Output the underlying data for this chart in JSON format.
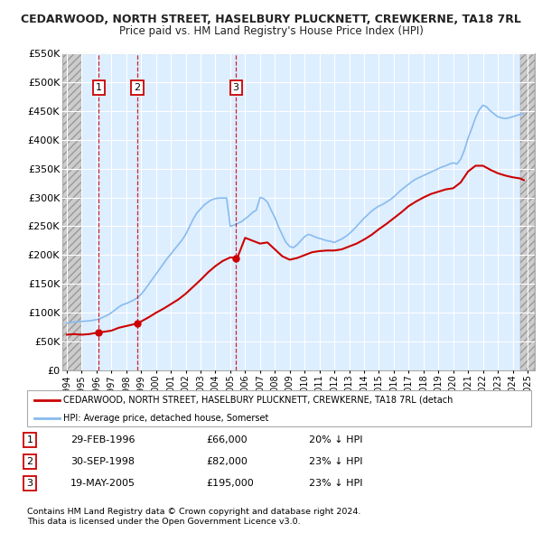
{
  "title": "CEDARWOOD, NORTH STREET, HASELBURY PLUCKNETT, CREWKERNE, TA18 7RL",
  "subtitle": "Price paid vs. HM Land Registry's House Price Index (HPI)",
  "ylim": [
    0,
    550000
  ],
  "xlim_start": 1993.7,
  "xlim_end": 2025.5,
  "yticks": [
    0,
    50000,
    100000,
    150000,
    200000,
    250000,
    300000,
    350000,
    400000,
    450000,
    500000,
    550000
  ],
  "ytick_labels": [
    "£0",
    "£50K",
    "£100K",
    "£150K",
    "£200K",
    "£250K",
    "£300K",
    "£350K",
    "£400K",
    "£450K",
    "£500K",
    "£550K"
  ],
  "hatch_left_end": 1995.0,
  "hatch_right_start": 2024.5,
  "plot_bg_color": "#ddeeff",
  "hatch_bg_color": "#d8d8d8",
  "grid_color": "#ffffff",
  "sale_dates": [
    1996.16,
    1998.75,
    2005.38
  ],
  "sale_prices": [
    66000,
    82000,
    195000
  ],
  "sale_labels": [
    "1",
    "2",
    "3"
  ],
  "red_line_color": "#cc0000",
  "blue_line_color": "#88bbee",
  "legend_red_label": "CEDARWOOD, NORTH STREET, HASELBURY PLUCKNETT, CREWKERNE, TA18 7RL (detach",
  "legend_blue_label": "HPI: Average price, detached house, Somerset",
  "table_rows": [
    [
      "1",
      "29-FEB-1996",
      "£66,000",
      "20% ↓ HPI"
    ],
    [
      "2",
      "30-SEP-1998",
      "£82,000",
      "23% ↓ HPI"
    ],
    [
      "3",
      "19-MAY-2005",
      "£195,000",
      "23% ↓ HPI"
    ]
  ],
  "footnote1": "Contains HM Land Registry data © Crown copyright and database right 2024.",
  "footnote2": "This data is licensed under the Open Government Licence v3.0.",
  "hpi_x": [
    1994.0,
    1994.25,
    1994.5,
    1994.75,
    1995.0,
    1995.25,
    1995.5,
    1995.75,
    1996.0,
    1996.25,
    1996.5,
    1996.75,
    1997.0,
    1997.25,
    1997.5,
    1997.75,
    1998.0,
    1998.25,
    1998.5,
    1998.75,
    1999.0,
    1999.25,
    1999.5,
    1999.75,
    2000.0,
    2000.25,
    2000.5,
    2000.75,
    2001.0,
    2001.25,
    2001.5,
    2001.75,
    2002.0,
    2002.25,
    2002.5,
    2002.75,
    2003.0,
    2003.25,
    2003.5,
    2003.75,
    2004.0,
    2004.25,
    2004.5,
    2004.75,
    2005.0,
    2005.25,
    2005.5,
    2005.75,
    2006.0,
    2006.25,
    2006.5,
    2006.75,
    2007.0,
    2007.25,
    2007.5,
    2007.75,
    2008.0,
    2008.25,
    2008.5,
    2008.75,
    2009.0,
    2009.25,
    2009.5,
    2009.75,
    2010.0,
    2010.25,
    2010.5,
    2010.75,
    2011.0,
    2011.25,
    2011.5,
    2011.75,
    2012.0,
    2012.25,
    2012.5,
    2012.75,
    2013.0,
    2013.25,
    2013.5,
    2013.75,
    2014.0,
    2014.25,
    2014.5,
    2014.75,
    2015.0,
    2015.25,
    2015.5,
    2015.75,
    2016.0,
    2016.25,
    2016.5,
    2016.75,
    2017.0,
    2017.25,
    2017.5,
    2017.75,
    2018.0,
    2018.25,
    2018.5,
    2018.75,
    2019.0,
    2019.25,
    2019.5,
    2019.75,
    2020.0,
    2020.25,
    2020.5,
    2020.75,
    2021.0,
    2021.25,
    2021.5,
    2021.75,
    2022.0,
    2022.25,
    2022.5,
    2022.75,
    2023.0,
    2023.25,
    2023.5,
    2023.75,
    2024.0,
    2024.25,
    2024.5,
    2024.75
  ],
  "hpi_y": [
    82000,
    83000,
    84000,
    84500,
    85000,
    85500,
    86000,
    87000,
    88000,
    90000,
    93000,
    96000,
    100000,
    105000,
    110000,
    114000,
    116000,
    119000,
    122000,
    126000,
    132000,
    140000,
    149000,
    158000,
    167000,
    176000,
    185000,
    194000,
    202000,
    210000,
    218000,
    226000,
    236000,
    249000,
    262000,
    273000,
    280000,
    287000,
    292000,
    296000,
    298000,
    299000,
    299000,
    299000,
    250000,
    252000,
    255000,
    258000,
    263000,
    268000,
    274000,
    278000,
    300000,
    298000,
    292000,
    278000,
    265000,
    249000,
    235000,
    222000,
    215000,
    213000,
    218000,
    225000,
    232000,
    236000,
    234000,
    231000,
    229000,
    227000,
    225000,
    224000,
    222000,
    225000,
    228000,
    232000,
    237000,
    243000,
    250000,
    257000,
    264000,
    270000,
    276000,
    281000,
    285000,
    288000,
    292000,
    296000,
    301000,
    307000,
    313000,
    318000,
    323000,
    328000,
    332000,
    335000,
    338000,
    341000,
    344000,
    347000,
    350000,
    353000,
    355000,
    358000,
    360000,
    358000,
    366000,
    382000,
    403000,
    420000,
    438000,
    452000,
    460000,
    457000,
    450000,
    445000,
    440000,
    438000,
    437000,
    438000,
    440000,
    442000,
    444000,
    446000
  ],
  "red_x": [
    1994.0,
    1994.5,
    1995.0,
    1995.5,
    1996.16,
    1996.5,
    1997.0,
    1997.5,
    1998.0,
    1998.5,
    1998.75,
    1999.0,
    1999.5,
    2000.0,
    2000.5,
    2001.0,
    2001.5,
    2002.0,
    2002.5,
    2003.0,
    2003.5,
    2004.0,
    2004.5,
    2005.0,
    2005.38,
    2005.5,
    2006.0,
    2006.5,
    2007.0,
    2007.5,
    2008.0,
    2008.5,
    2009.0,
    2009.5,
    2010.0,
    2010.5,
    2011.0,
    2011.5,
    2012.0,
    2012.5,
    2013.0,
    2013.5,
    2014.0,
    2014.5,
    2015.0,
    2015.5,
    2016.0,
    2016.5,
    2017.0,
    2017.5,
    2018.0,
    2018.5,
    2019.0,
    2019.5,
    2020.0,
    2020.5,
    2021.0,
    2021.5,
    2022.0,
    2022.5,
    2023.0,
    2023.5,
    2024.0,
    2024.5,
    2024.75
  ],
  "red_y": [
    62000,
    63000,
    62000,
    63000,
    66000,
    67000,
    69000,
    74000,
    77000,
    80000,
    82000,
    85000,
    92000,
    100000,
    107000,
    115000,
    123000,
    133000,
    145000,
    157000,
    170000,
    181000,
    190000,
    196000,
    195000,
    197000,
    230000,
    225000,
    220000,
    222000,
    210000,
    198000,
    192000,
    195000,
    200000,
    205000,
    207000,
    208000,
    208000,
    210000,
    215000,
    220000,
    227000,
    235000,
    245000,
    254000,
    264000,
    274000,
    285000,
    293000,
    300000,
    306000,
    310000,
    314000,
    316000,
    326000,
    345000,
    355000,
    355000,
    348000,
    342000,
    338000,
    335000,
    333000,
    330000
  ]
}
